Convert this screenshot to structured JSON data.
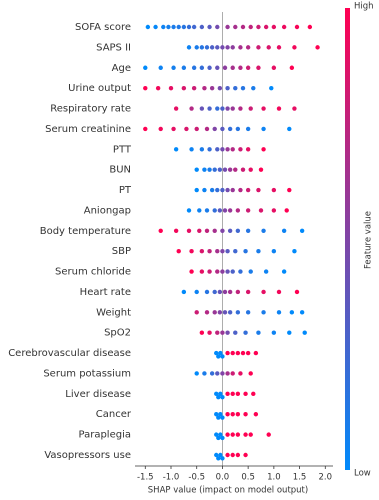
{
  "chart_data": {
    "type": "beeswarm",
    "x_label": "SHAP value (impact on model output)",
    "colorbar_label": "Feature value",
    "colorbar_high": "High",
    "colorbar_low": "Low",
    "cmap": {
      "low": "#008afb",
      "high": "#ff0052"
    },
    "xlim": [
      -1.7,
      2.15
    ],
    "xticks": [
      -1.5,
      {
        "value": -1.0,
        "label": "-1.0"
      },
      -0.5,
      {
        "value": 0.0,
        "label": "0.0"
      },
      0.5,
      {
        "value": 1.0,
        "label": "1.0"
      },
      1.5,
      {
        "value": 2.0,
        "label": "2.0"
      }
    ],
    "categories": [
      "SOFA score",
      "SAPS II",
      "Age",
      "Urine output",
      "Respiratory rate",
      "Serum creatinine",
      "PTT",
      "BUN",
      "PT",
      "Aniongap",
      "Body temperature",
      "SBP",
      "Serum chloride",
      "Heart rate",
      "Weight",
      "SpO2",
      "Cerebrovascular disease",
      "Serum potassium",
      "Liver disease",
      "Cancer",
      "Paraplegia",
      "Vasopressors use"
    ],
    "values": [
      [
        -1.45,
        -1.3,
        -1.15,
        -1.05,
        -0.95,
        -0.85,
        -0.75,
        -0.65,
        -0.55,
        -0.4,
        -0.25,
        -0.1,
        0.1,
        0.25,
        0.4,
        0.55,
        0.7,
        0.85,
        1.0,
        1.2,
        1.45,
        1.7
      ],
      [
        -0.65,
        -0.5,
        -0.4,
        -0.3,
        -0.2,
        -0.1,
        0.0,
        0.1,
        0.2,
        0.35,
        0.5,
        0.7,
        0.9,
        1.1,
        1.4,
        1.85
      ],
      [
        -1.5,
        -1.2,
        -0.95,
        -0.75,
        -0.55,
        -0.4,
        -0.25,
        -0.1,
        0.05,
        0.2,
        0.35,
        0.5,
        0.7,
        1.0,
        1.35
      ],
      [
        -1.5,
        -1.25,
        -1.0,
        -0.75,
        -0.55,
        -0.35,
        -0.2,
        -0.05,
        0.1,
        0.25,
        0.4,
        0.6,
        0.95
      ],
      [
        -0.9,
        -0.6,
        -0.4,
        -0.25,
        -0.1,
        0.0,
        0.1,
        0.2,
        0.35,
        0.55,
        0.8,
        1.1,
        1.4
      ],
      [
        -1.5,
        -1.2,
        -0.95,
        -0.7,
        -0.5,
        -0.3,
        -0.15,
        0.0,
        0.15,
        0.3,
        0.5,
        0.8,
        1.3
      ],
      [
        -0.9,
        -0.6,
        -0.4,
        -0.25,
        -0.1,
        0.0,
        0.1,
        0.2,
        0.35,
        0.5,
        0.8
      ],
      [
        -0.5,
        -0.35,
        -0.25,
        -0.15,
        -0.05,
        0.05,
        0.15,
        0.25,
        0.4,
        0.55,
        0.75
      ],
      [
        -0.5,
        -0.35,
        -0.2,
        -0.1,
        0.0,
        0.1,
        0.2,
        0.35,
        0.5,
        0.7,
        1.0,
        1.3
      ],
      [
        -0.65,
        -0.45,
        -0.3,
        -0.15,
        -0.05,
        0.05,
        0.15,
        0.3,
        0.5,
        0.75,
        1.0,
        1.25
      ],
      [
        -1.2,
        -0.9,
        -0.65,
        -0.45,
        -0.3,
        -0.15,
        0.0,
        0.15,
        0.3,
        0.5,
        0.8,
        1.2,
        1.55
      ],
      [
        -0.85,
        -0.6,
        -0.4,
        -0.25,
        -0.1,
        0.0,
        0.1,
        0.25,
        0.45,
        0.7,
        1.0,
        1.4
      ],
      [
        -0.6,
        -0.4,
        -0.25,
        -0.1,
        0.0,
        0.1,
        0.2,
        0.35,
        0.55,
        0.85,
        1.2
      ],
      [
        -0.75,
        -0.5,
        -0.3,
        -0.15,
        -0.05,
        0.05,
        0.15,
        0.3,
        0.5,
        0.8,
        1.1,
        1.45
      ],
      [
        -0.5,
        -0.3,
        -0.15,
        -0.05,
        0.05,
        0.15,
        0.3,
        0.5,
        0.8,
        1.1,
        1.35,
        1.55
      ],
      [
        -0.4,
        -0.25,
        -0.1,
        0.0,
        0.1,
        0.25,
        0.45,
        0.7,
        1.0,
        1.3,
        1.6
      ],
      [
        -0.12,
        -0.08,
        -0.04,
        0.0,
        0.1,
        0.2,
        0.3,
        0.4,
        0.5,
        0.65
      ],
      [
        -0.5,
        -0.35,
        -0.2,
        -0.1,
        0.0,
        0.1,
        0.2,
        0.35,
        0.55
      ],
      [
        -0.12,
        -0.08,
        -0.04,
        0.0,
        0.1,
        0.2,
        0.3,
        0.45,
        0.6
      ],
      [
        -0.12,
        -0.08,
        -0.04,
        0.0,
        0.1,
        0.2,
        0.3,
        0.45,
        0.65
      ],
      [
        -0.12,
        -0.08,
        -0.04,
        0.0,
        0.1,
        0.2,
        0.3,
        0.45,
        0.55,
        0.9
      ],
      [
        -0.12,
        -0.08,
        -0.04,
        0.0,
        0.1,
        0.2,
        0.3,
        0.45
      ]
    ],
    "feature_values": [
      [
        0,
        0.02,
        0.05,
        0.08,
        0.1,
        0.12,
        0.15,
        0.2,
        0.25,
        0.3,
        0.35,
        0.45,
        0.6,
        0.65,
        0.7,
        0.75,
        0.8,
        0.85,
        0.9,
        0.93,
        0.97,
        1
      ],
      [
        0.05,
        0.1,
        0.15,
        0.2,
        0.3,
        0.35,
        0.45,
        0.5,
        0.55,
        0.65,
        0.7,
        0.8,
        0.85,
        0.9,
        0.95,
        1
      ],
      [
        0,
        0.05,
        0.08,
        0.1,
        0.15,
        0.2,
        0.3,
        0.4,
        0.55,
        0.65,
        0.7,
        0.8,
        0.85,
        0.9,
        1
      ],
      [
        1,
        0.95,
        0.9,
        0.85,
        0.8,
        0.7,
        0.6,
        0.45,
        0.3,
        0.2,
        0.15,
        0.1,
        0
      ],
      [
        0.9,
        0.7,
        0.4,
        0.3,
        0.2,
        0.3,
        0.5,
        0.6,
        0.7,
        0.8,
        0.9,
        0.95,
        0.9
      ],
      [
        1,
        0.95,
        0.9,
        0.85,
        0.8,
        0.7,
        0.5,
        0.35,
        0.2,
        0.15,
        0.1,
        0.05,
        0
      ],
      [
        0,
        0.05,
        0.1,
        0.2,
        0.3,
        0.45,
        0.6,
        0.7,
        0.8,
        0.9,
        1
      ],
      [
        0,
        0.05,
        0.1,
        0.2,
        0.3,
        0.45,
        0.6,
        0.7,
        0.8,
        0.9,
        1
      ],
      [
        0,
        0.05,
        0.1,
        0.2,
        0.3,
        0.45,
        0.6,
        0.7,
        0.8,
        0.85,
        0.9,
        1
      ],
      [
        0,
        0.05,
        0.1,
        0.2,
        0.35,
        0.5,
        0.6,
        0.7,
        0.8,
        0.85,
        0.9,
        1
      ],
      [
        1,
        0.95,
        0.9,
        0.85,
        0.75,
        0.65,
        0.5,
        0.35,
        0.25,
        0.15,
        0.1,
        0.05,
        0
      ],
      [
        1,
        0.95,
        0.85,
        0.75,
        0.65,
        0.5,
        0.35,
        0.25,
        0.15,
        0.1,
        0.05,
        0
      ],
      [
        1,
        0.9,
        0.8,
        0.7,
        0.55,
        0.4,
        0.3,
        0.2,
        0.1,
        0.05,
        0
      ],
      [
        0,
        0.05,
        0.15,
        0.25,
        0.4,
        0.55,
        0.65,
        0.75,
        0.85,
        0.9,
        0.95,
        1
      ],
      [
        0.8,
        0.7,
        0.6,
        0.5,
        0.4,
        0.3,
        0.2,
        0.15,
        0.1,
        0.05,
        0,
        0
      ],
      [
        1,
        0.9,
        0.75,
        0.6,
        0.45,
        0.3,
        0.2,
        0.1,
        0.05,
        0,
        0
      ],
      [
        0,
        0,
        0,
        0,
        1,
        1,
        1,
        1,
        1,
        1
      ],
      [
        0,
        0.1,
        0.2,
        0.35,
        0.5,
        0.65,
        0.8,
        0.9,
        1
      ],
      [
        0,
        0,
        0,
        0,
        1,
        1,
        1,
        1,
        1
      ],
      [
        0,
        0,
        0,
        0,
        1,
        1,
        1,
        1,
        1
      ],
      [
        0,
        0,
        0,
        0,
        1,
        1,
        1,
        1,
        1,
        1
      ],
      [
        0,
        0,
        0,
        0,
        1,
        1,
        1,
        1
      ]
    ]
  }
}
